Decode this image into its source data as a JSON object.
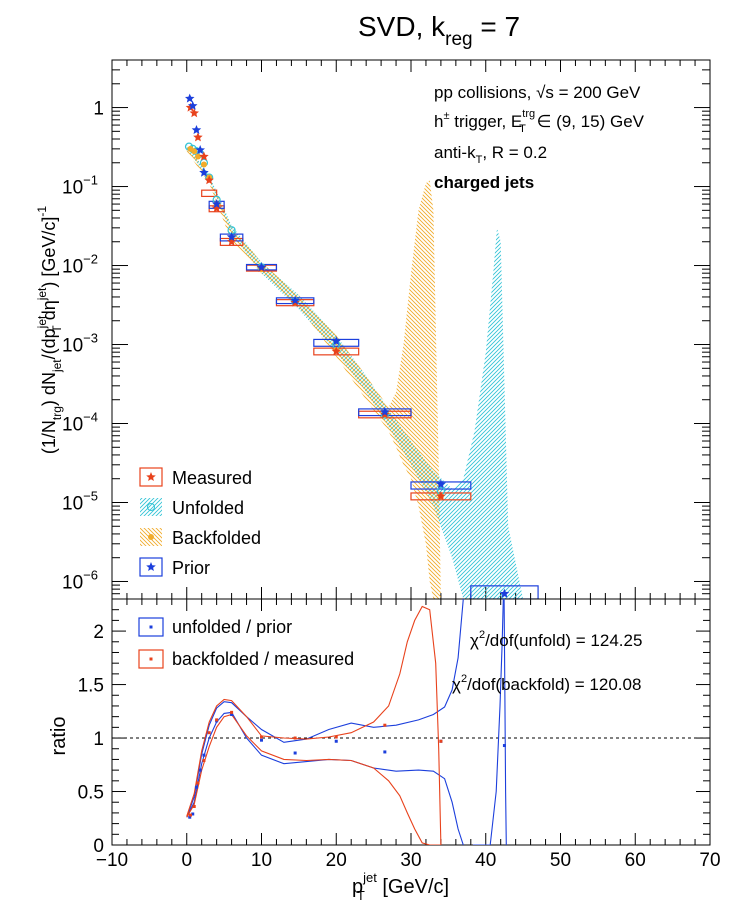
{
  "figure": {
    "title_pre": "SVD, k",
    "title_sub": "reg",
    "title_post": " = 7",
    "annotations": {
      "line1_pre": "pp collisions, ",
      "line1_sqrt": "√s",
      "line1_post": " = 200 GeV",
      "line2_pre": "h",
      "line2_sup": "±",
      "line2_mid": " trigger, E",
      "line2_sup2": "trg",
      "line2_sub2": "T",
      "line2_post": " ∈ (9, 15) GeV",
      "line3_pre": "anti-k",
      "line3_sub": "T",
      "line3_post": ", R = 0.2",
      "line4": "charged jets"
    }
  },
  "colors": {
    "measured": "#e8421c",
    "unfolded": "#33c3d6",
    "backfolded": "#f1ab2a",
    "prior": "#1c3fdc",
    "frame": "#000000"
  },
  "chart_data": [
    {
      "type": "scatter",
      "yscale": "log",
      "ylim": [
        6e-07,
        4
      ],
      "xlim": [
        -10,
        70
      ],
      "ylabel": "(1/N_trg) dN_jet/(dp_T^jet dη^jet) [GeV/c]^-1",
      "yticks": [
        {
          "v": 1,
          "label": "1"
        },
        {
          "v": 0.1,
          "label": "10",
          "exp": "−1"
        },
        {
          "v": 0.01,
          "label": "10",
          "exp": "−2"
        },
        {
          "v": 0.001,
          "label": "10",
          "exp": "−3"
        },
        {
          "v": 0.0001,
          "label": "10",
          "exp": "−4"
        },
        {
          "v": 1e-05,
          "label": "10",
          "exp": "−5"
        },
        {
          "v": 1e-06,
          "label": "10",
          "exp": "−6"
        }
      ],
      "legend": {
        "position": "bottom-left",
        "entries": [
          {
            "key": "measured",
            "label": "Measured"
          },
          {
            "key": "unfolded",
            "label": "Unfolded"
          },
          {
            "key": "backfolded",
            "label": "Backfolded"
          },
          {
            "key": "prior",
            "label": "Prior"
          }
        ]
      },
      "series": [
        {
          "name": "Measured",
          "x": [
            0.5,
            1,
            1.5,
            2.3,
            3,
            4,
            6,
            10,
            14.5,
            20,
            26.5,
            34
          ],
          "y": [
            1.0,
            0.85,
            0.42,
            0.24,
            0.12,
            0.053,
            0.02,
            0.0093,
            0.0034,
            0.00082,
            0.00013,
            1.2e-05
          ],
          "xerr": [
            0,
            0,
            0,
            0,
            0,
            1,
            1.5,
            2,
            2.5,
            3,
            3.5,
            4
          ]
        },
        {
          "name": "Unfolded",
          "x": [
            0.3,
            0.8,
            1.3,
            1.8,
            2.3,
            3,
            4,
            6,
            10,
            14.5,
            20,
            26.5,
            34
          ],
          "y": [
            0.32,
            0.3,
            0.28,
            0.26,
            0.2,
            0.13,
            0.068,
            0.028,
            0.0095,
            0.0035,
            0.001,
            0.00013,
            1.4e-05
          ]
        },
        {
          "name": "Backfolded",
          "x": [
            0.5,
            1,
            1.5,
            2.3,
            3,
            4,
            6,
            10,
            14.5,
            20,
            26.5,
            34
          ],
          "y": [
            0.3,
            0.28,
            0.24,
            0.19,
            0.13,
            0.06,
            0.021,
            0.009,
            0.0034,
            0.00085,
            0.00013,
            1.2e-05
          ]
        },
        {
          "name": "Prior",
          "x": [
            0.4,
            0.8,
            1.3,
            1.8,
            2.3,
            4,
            6,
            10,
            14.5,
            20,
            26.5,
            34,
            42.5
          ],
          "y": [
            1.3,
            1.05,
            0.52,
            0.29,
            0.15,
            0.06,
            0.023,
            0.0095,
            0.0036,
            0.0011,
            0.00014,
            1.7e-05,
            7e-07
          ],
          "xerr": [
            0,
            0,
            0,
            0,
            0,
            1,
            1.5,
            2,
            2.5,
            3,
            3.5,
            4,
            4.5
          ]
        }
      ],
      "bands": [
        {
          "key": "unfolded",
          "x": [
            0,
            3,
            6,
            10,
            15,
            20,
            24,
            27,
            30,
            33,
            35.5,
            37,
            38.5,
            40,
            41,
            41.5,
            42,
            43,
            45
          ],
          "low": [
            0.3,
            0.12,
            0.025,
            0.008,
            0.0028,
            0.0008,
            0.00025,
            9e-05,
            3e-05,
            9e-06,
            2e-06,
            6e-07,
            6e-07,
            6e-07,
            6e-07,
            6e-07,
            6e-07,
            6e-07,
            6e-07
          ],
          "high": [
            0.34,
            0.14,
            0.032,
            0.011,
            0.0042,
            0.0013,
            0.0004,
            0.00015,
            6e-05,
            2.5e-05,
            1.5e-05,
            2e-05,
            8e-05,
            0.0008,
            0.008,
            0.03,
            0.02,
            5e-06,
            6e-07
          ]
        },
        {
          "key": "backfolded",
          "x": [
            0,
            3,
            6,
            10,
            15,
            20,
            24,
            27,
            28,
            29,
            30,
            31,
            32,
            32.5,
            33,
            33.7,
            34
          ],
          "low": [
            0.28,
            0.11,
            0.02,
            0.008,
            0.003,
            0.0007,
            0.0002,
            8e-05,
            5e-05,
            3e-05,
            2e-05,
            9e-06,
            3e-06,
            1e-06,
            6e-07,
            6e-07,
            6e-07
          ],
          "high": [
            0.32,
            0.13,
            0.03,
            0.011,
            0.0042,
            0.0013,
            0.0004,
            0.00016,
            0.00025,
            0.001,
            0.008,
            0.05,
            0.11,
            0.12,
            0.05,
            3e-05,
            6e-07
          ]
        }
      ],
      "boxes": [
        {
          "key": "measured",
          "x0": 2,
          "x1": 4,
          "y0": 0.075,
          "y1": 0.09
        },
        {
          "key": "measured",
          "x0": 3,
          "x1": 5,
          "y0": 0.048,
          "y1": 0.057
        },
        {
          "key": "measured",
          "x0": 4.5,
          "x1": 7.5,
          "y0": 0.018,
          "y1": 0.022
        },
        {
          "key": "measured",
          "x0": 8,
          "x1": 12,
          "y0": 0.0085,
          "y1": 0.0101
        },
        {
          "key": "measured",
          "x0": 12,
          "x1": 17,
          "y0": 0.0031,
          "y1": 0.0037
        },
        {
          "key": "measured",
          "x0": 17,
          "x1": 23,
          "y0": 0.00074,
          "y1": 0.0009
        },
        {
          "key": "measured",
          "x0": 23,
          "x1": 30,
          "y0": 0.000118,
          "y1": 0.000143
        },
        {
          "key": "measured",
          "x0": 30,
          "x1": 38,
          "y0": 1.08e-05,
          "y1": 1.32e-05
        },
        {
          "key": "prior",
          "x0": 3,
          "x1": 5,
          "y0": 0.053,
          "y1": 0.065
        },
        {
          "key": "prior",
          "x0": 4.5,
          "x1": 7.5,
          "y0": 0.0205,
          "y1": 0.025
        },
        {
          "key": "prior",
          "x0": 8,
          "x1": 12,
          "y0": 0.0088,
          "y1": 0.0103
        },
        {
          "key": "prior",
          "x0": 12,
          "x1": 17,
          "y0": 0.0033,
          "y1": 0.0039
        },
        {
          "key": "prior",
          "x0": 17,
          "x1": 23,
          "y0": 0.00095,
          "y1": 0.00116
        },
        {
          "key": "prior",
          "x0": 23,
          "x1": 30,
          "y0": 0.000126,
          "y1": 0.000153
        },
        {
          "key": "prior",
          "x0": 30,
          "x1": 38,
          "y0": 1.48e-05,
          "y1": 1.82e-05
        },
        {
          "key": "prior",
          "x0": 38,
          "x1": 47,
          "y0": 6e-07,
          "y1": 8.8e-07
        }
      ]
    },
    {
      "type": "line",
      "xlabel_pre": "p",
      "xlabel_sup": "jet",
      "xlabel_sub": "T",
      "xlabel_post": " [GeV/c]",
      "ylabel": "ratio",
      "xlim": [
        -10,
        70
      ],
      "ylim": [
        0,
        2.3
      ],
      "xticks": [
        -10,
        0,
        10,
        20,
        30,
        40,
        50,
        60,
        70
      ],
      "xtick_labels": [
        "−10",
        "0",
        "10",
        "20",
        "30",
        "40",
        "50",
        "60",
        "70"
      ],
      "yticks": [
        0,
        0.5,
        1,
        1.5,
        2
      ],
      "ytick_labels": [
        "0",
        "0.5",
        "1",
        "1.5",
        "2"
      ],
      "reference_line": 1,
      "chi2": [
        {
          "pre": "χ",
          "sup": "2",
          "post": "/dof(unfold) = 124.25"
        },
        {
          "pre": "χ",
          "sup": "2",
          "post": "/dof(backfold) = 120.08"
        }
      ],
      "legend": {
        "position": "top-left",
        "entries": [
          {
            "key": "prior",
            "label": "unfolded / prior"
          },
          {
            "key": "measured",
            "label": "backfolded / measured"
          }
        ]
      },
      "series": [
        {
          "name": "unfolded / prior",
          "points_x": [
            0.4,
            0.8,
            1.3,
            1.8,
            2.3,
            4,
            6,
            10,
            14.5,
            20,
            26.5,
            34,
            42.5
          ],
          "points_y": [
            0.26,
            0.29,
            0.54,
            0.7,
            0.84,
            1.16,
            1.22,
            0.98,
            0.86,
            0.97,
            0.87,
            0.97,
            0.93
          ],
          "band_x": [
            0,
            1,
            2,
            3,
            4,
            5,
            6,
            8,
            10,
            13,
            16,
            19,
            22,
            25,
            28,
            31,
            33,
            34.5,
            35.5,
            36.3,
            37,
            38,
            39,
            40,
            41,
            41.8,
            42.1,
            42.3,
            42.4,
            42.45
          ],
          "band_high": [
            0.26,
            0.45,
            0.85,
            1.12,
            1.28,
            1.34,
            1.33,
            1.2,
            1.08,
            0.96,
            0.99,
            1.08,
            1.14,
            1.1,
            1.12,
            1.17,
            1.22,
            1.29,
            1.45,
            1.75,
            2.3,
            null,
            null,
            null,
            null,
            null,
            null,
            null,
            null,
            null
          ],
          "band_low": [
            0.26,
            0.4,
            0.76,
            1.0,
            1.15,
            1.23,
            1.24,
            1.0,
            0.84,
            0.76,
            0.78,
            0.8,
            0.79,
            0.72,
            0.69,
            0.7,
            0.69,
            0.62,
            0.4,
            0.15,
            0.0,
            null,
            null,
            null,
            null,
            null,
            null,
            null,
            null,
            null
          ],
          "spike_x": [
            40.3,
            41,
            41.6,
            41.9,
            42.1,
            42.25,
            42.35
          ],
          "spike_low": [
            0.0,
            0.0,
            0.0,
            0.0,
            0.0,
            0.0,
            0.0
          ]
        },
        {
          "name": "backfolded / measured",
          "points_x": [
            0.5,
            1,
            1.5,
            2.3,
            3,
            4,
            6,
            10,
            14.5,
            20,
            26.5,
            34
          ],
          "points_y": [
            0.28,
            0.36,
            0.58,
            0.79,
            1.05,
            1.17,
            1.24,
            1.01,
            1.0,
            1.01,
            1.12,
            0.97
          ],
          "band_x": [
            0,
            1,
            2,
            3,
            4,
            5,
            6,
            8,
            10,
            13,
            16,
            19,
            22,
            25,
            27,
            28.5,
            29.5,
            30.5,
            31.5,
            32.5,
            33.3,
            33.7,
            34
          ],
          "band_high": [
            0.27,
            0.48,
            0.88,
            1.15,
            1.3,
            1.36,
            1.35,
            1.2,
            1.02,
            1.0,
            0.99,
            1.01,
            1.05,
            1.15,
            1.3,
            1.6,
            1.9,
            2.1,
            2.23,
            2.2,
            1.7,
            0.9,
            0.0
          ],
          "band_low": [
            0.26,
            0.38,
            0.7,
            0.92,
            1.1,
            1.2,
            1.22,
            1.02,
            0.88,
            0.8,
            0.79,
            0.8,
            0.79,
            0.72,
            0.6,
            0.46,
            0.3,
            0.15,
            0.02,
            0.0,
            0.0,
            0.0,
            0.0
          ]
        }
      ]
    }
  ]
}
